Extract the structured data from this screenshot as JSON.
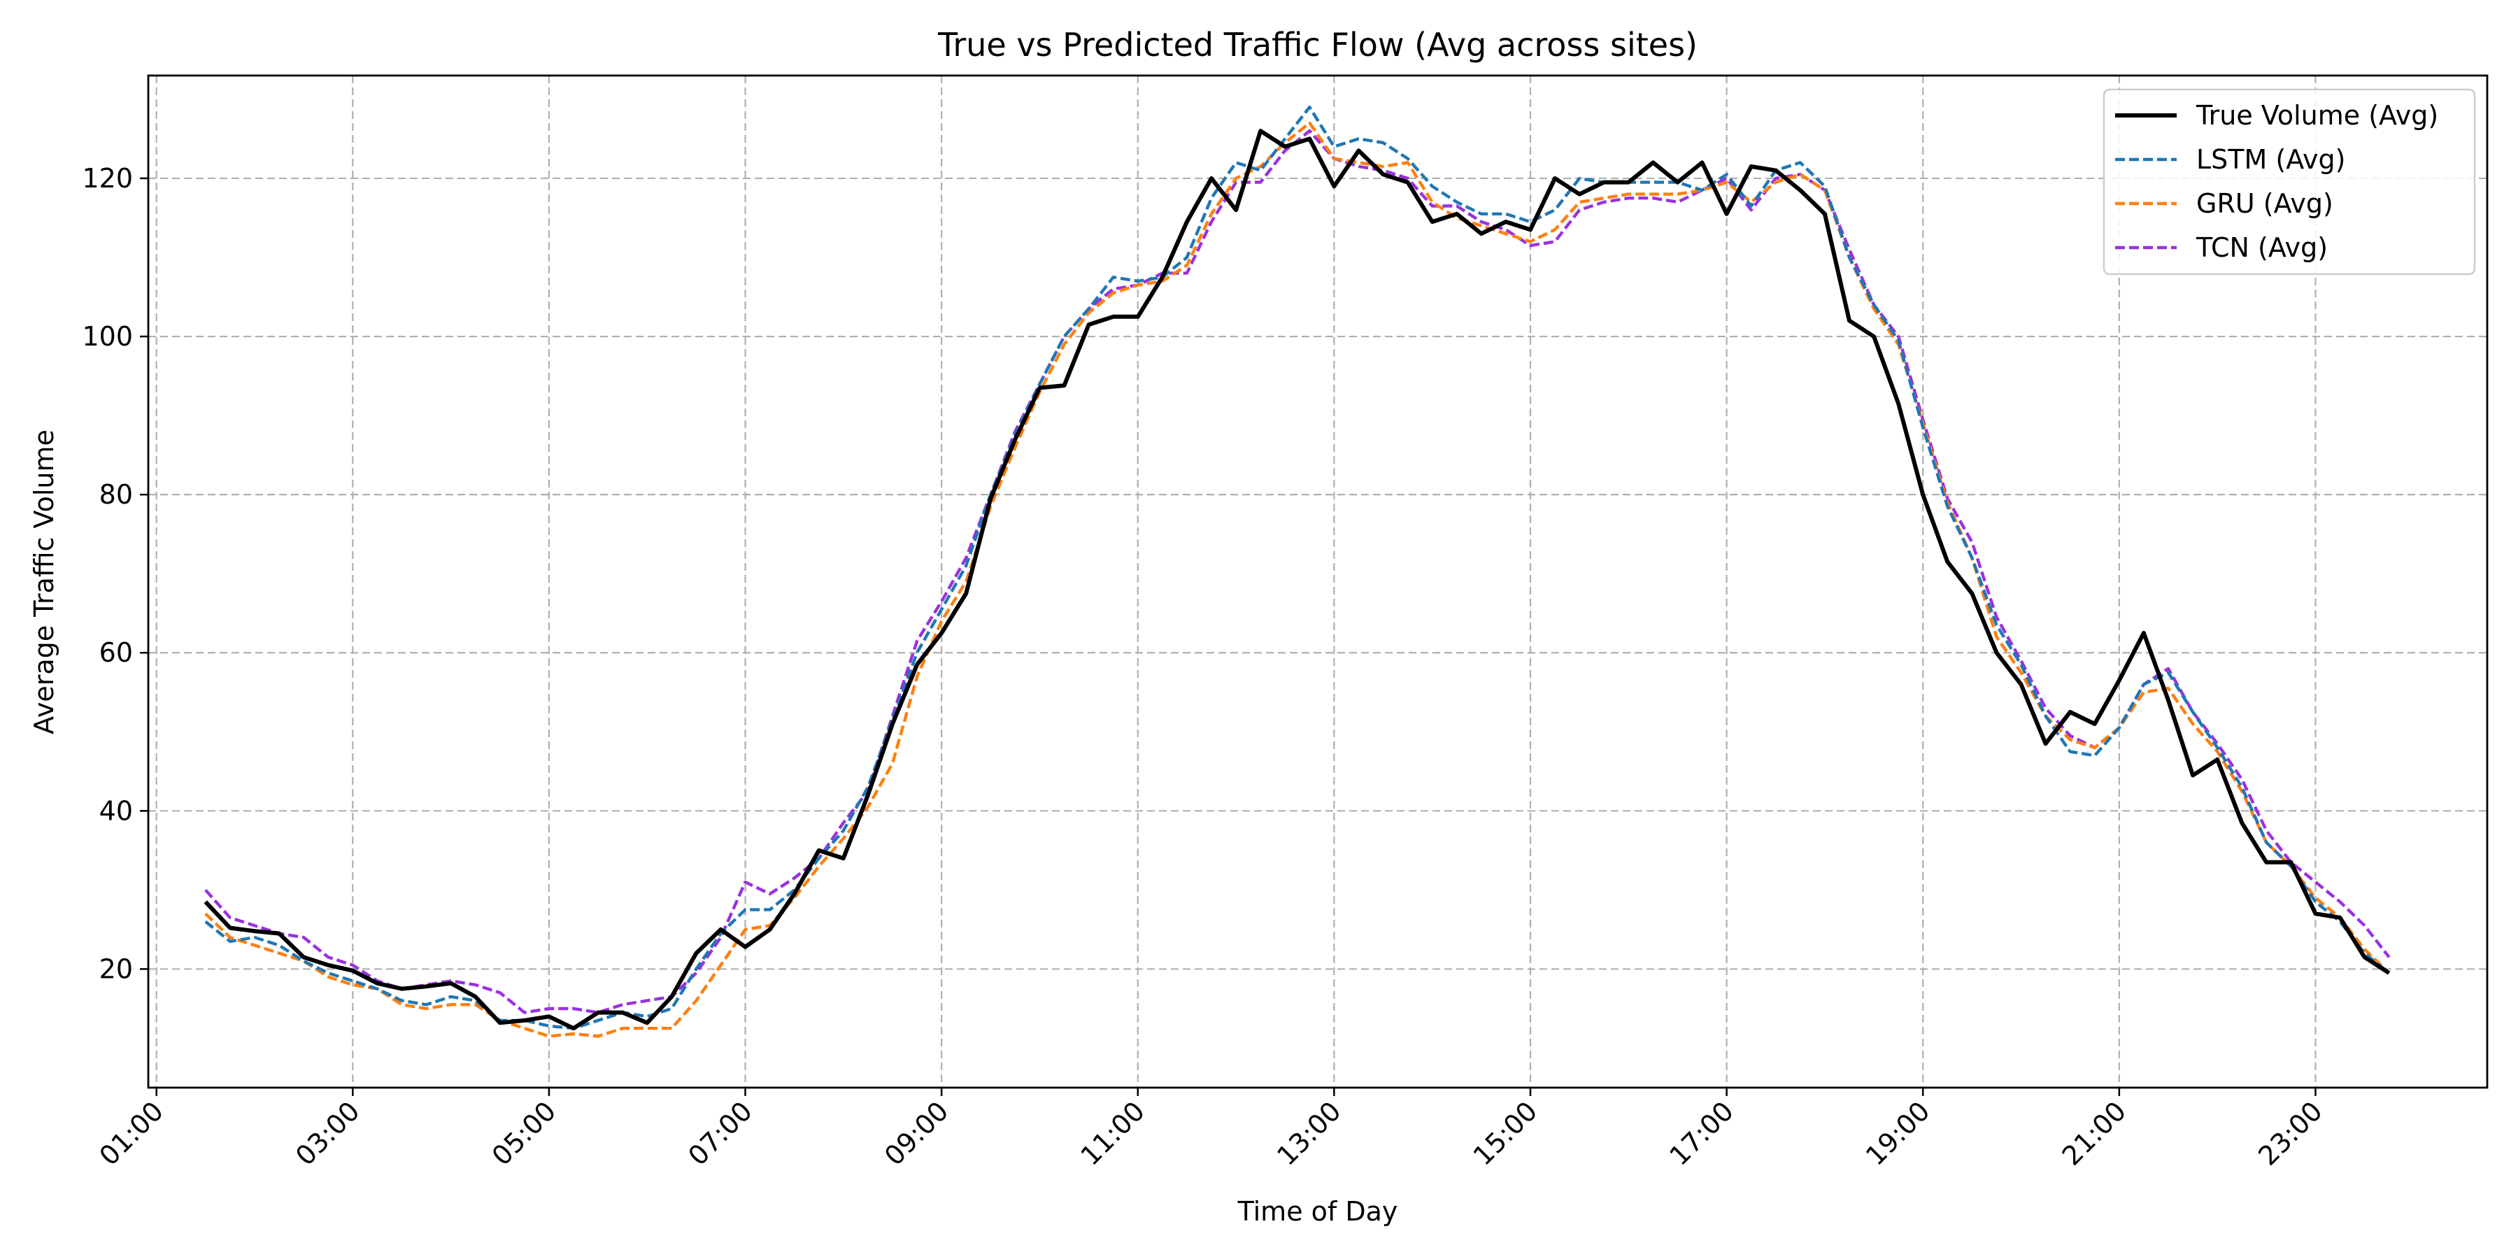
{
  "chart_data": {
    "type": "line",
    "title": "True vs Predicted Traffic Flow (Avg across sites)",
    "xlabel": "Time of Day",
    "ylabel": "Average Traffic Volume",
    "xlim": [
      "00:55",
      "24:45"
    ],
    "ylim": [
      5,
      133
    ],
    "x_ticks": [
      "01:00",
      "03:00",
      "05:00",
      "07:00",
      "09:00",
      "11:00",
      "13:00",
      "15:00",
      "17:00",
      "19:00",
      "21:00",
      "23:00"
    ],
    "y_ticks": [
      20,
      40,
      60,
      80,
      100,
      120
    ],
    "grid": true,
    "legend_position": "top-right",
    "x": [
      "01:30",
      "01:45",
      "02:00",
      "02:15",
      "02:30",
      "02:45",
      "03:00",
      "03:15",
      "03:30",
      "03:45",
      "04:00",
      "04:15",
      "04:30",
      "04:45",
      "05:00",
      "05:15",
      "05:30",
      "05:45",
      "06:00",
      "06:15",
      "06:30",
      "06:45",
      "07:00",
      "07:15",
      "07:30",
      "07:45",
      "08:00",
      "08:15",
      "08:30",
      "08:45",
      "09:00",
      "09:15",
      "09:30",
      "09:45",
      "10:00",
      "10:15",
      "10:30",
      "10:45",
      "11:00",
      "11:15",
      "11:30",
      "11:45",
      "12:00",
      "12:15",
      "12:30",
      "12:45",
      "13:00",
      "13:15",
      "13:30",
      "13:45",
      "14:00",
      "14:15",
      "14:30",
      "14:45",
      "15:00",
      "15:15",
      "15:30",
      "15:45",
      "16:00",
      "16:15",
      "16:30",
      "16:45",
      "17:00",
      "17:15",
      "17:30",
      "17:45",
      "18:00",
      "18:15",
      "18:30",
      "18:45",
      "19:00",
      "19:15",
      "19:30",
      "19:45",
      "20:00",
      "20:15",
      "20:30",
      "20:45",
      "21:00",
      "21:15",
      "21:30",
      "21:45",
      "22:00",
      "22:15",
      "22:30",
      "22:45",
      "23:00",
      "23:15",
      "23:30",
      "23:45"
    ],
    "series": [
      {
        "name": "True Volume (Avg)",
        "color": "#000000",
        "dashed": false,
        "values": [
          28.5,
          25.2,
          24.8,
          24.5,
          21.5,
          20.5,
          19.8,
          18.2,
          17.5,
          17.8,
          18.2,
          16.5,
          13.2,
          13.5,
          14.0,
          12.5,
          14.5,
          14.5,
          13.2,
          16.5,
          22.0,
          25.0,
          22.8,
          25.0,
          29.5,
          35.0,
          34.0,
          42.0,
          51.0,
          58.5,
          62.5,
          67.5,
          79.5,
          87.0,
          93.5,
          93.8,
          101.5,
          102.5,
          102.5,
          107.5,
          114.5,
          120.0,
          116.0,
          126.0,
          124.0,
          125.0,
          119.0,
          123.5,
          120.5,
          119.5,
          114.5,
          115.5,
          113.0,
          114.5,
          113.5,
          120.0,
          118.0,
          119.5,
          119.5,
          122.0,
          119.5,
          122.0,
          115.5,
          121.5,
          121.0,
          118.5,
          115.5,
          102.0,
          100.0,
          91.5,
          80.0,
          71.5,
          67.5,
          60.0,
          56.0,
          48.5,
          52.5,
          51.0,
          56.5,
          62.5,
          54.0,
          44.5,
          46.5,
          38.5,
          33.5,
          33.5,
          27.0,
          26.5,
          21.5,
          19.5
        ]
      },
      {
        "name": "LSTM (Avg)",
        "color": "#1f77b4",
        "dashed": true,
        "values": [
          26.0,
          23.5,
          24.0,
          23.0,
          21.0,
          19.5,
          18.5,
          17.5,
          16.0,
          15.5,
          16.5,
          16.0,
          13.5,
          13.5,
          12.8,
          12.5,
          13.5,
          14.5,
          14.0,
          15.0,
          20.0,
          24.5,
          27.5,
          27.5,
          30.0,
          34.0,
          37.5,
          43.0,
          51.5,
          60.0,
          65.5,
          71.0,
          80.0,
          87.5,
          94.0,
          100.0,
          103.5,
          107.5,
          107.0,
          107.5,
          110.0,
          117.5,
          122.0,
          121.0,
          125.0,
          129.0,
          124.0,
          125.0,
          124.5,
          122.5,
          119.0,
          117.0,
          115.5,
          115.5,
          114.5,
          116.0,
          120.0,
          119.5,
          119.5,
          119.5,
          119.5,
          118.5,
          120.5,
          116.5,
          121.0,
          122.0,
          119.0,
          110.0,
          104.0,
          99.5,
          88.5,
          78.5,
          72.0,
          63.5,
          58.5,
          52.0,
          47.5,
          47.0,
          50.5,
          56.0,
          57.5,
          52.5,
          48.0,
          43.0,
          36.0,
          33.0,
          28.5,
          26.0,
          22.0,
          19.5
        ]
      },
      {
        "name": "GRU (Avg)",
        "color": "#ff7f0e",
        "dashed": true,
        "values": [
          27.0,
          24.0,
          23.0,
          22.0,
          21.0,
          19.0,
          18.0,
          17.5,
          15.5,
          15.0,
          15.5,
          15.5,
          13.5,
          12.5,
          11.5,
          11.8,
          11.5,
          12.5,
          12.5,
          12.5,
          16.0,
          20.5,
          25.0,
          25.5,
          29.0,
          33.0,
          36.5,
          40.5,
          46.0,
          57.0,
          64.0,
          69.0,
          78.5,
          86.0,
          93.0,
          99.0,
          103.0,
          105.5,
          106.5,
          107.0,
          109.0,
          115.5,
          120.0,
          121.5,
          124.5,
          127.0,
          122.5,
          122.0,
          121.5,
          122.0,
          117.0,
          115.0,
          114.0,
          113.0,
          112.0,
          113.5,
          117.0,
          117.5,
          118.0,
          118.0,
          118.0,
          118.5,
          119.5,
          117.0,
          119.5,
          120.5,
          118.5,
          110.0,
          103.5,
          99.0,
          89.0,
          79.0,
          72.0,
          62.0,
          57.5,
          52.0,
          49.0,
          48.0,
          50.5,
          55.0,
          55.5,
          51.0,
          47.5,
          42.5,
          36.0,
          33.0,
          29.0,
          26.5,
          22.5,
          19.5
        ]
      },
      {
        "name": "TCN (Avg)",
        "color": "#9b30e0",
        "dashed": true,
        "values": [
          30.0,
          26.5,
          25.5,
          24.5,
          24.0,
          21.5,
          20.5,
          18.5,
          17.5,
          18.0,
          18.5,
          18.0,
          17.0,
          14.5,
          15.0,
          15.0,
          14.5,
          15.5,
          16.0,
          16.5,
          19.5,
          24.0,
          31.0,
          29.5,
          31.5,
          34.0,
          38.5,
          42.5,
          52.0,
          61.5,
          66.5,
          72.0,
          80.0,
          88.0,
          94.0,
          100.0,
          103.5,
          106.0,
          106.5,
          108.0,
          108.0,
          114.5,
          119.5,
          119.5,
          123.5,
          126.0,
          122.5,
          121.5,
          121.0,
          120.0,
          116.5,
          116.5,
          114.5,
          113.5,
          111.5,
          112.0,
          116.0,
          117.0,
          117.5,
          117.5,
          117.0,
          118.5,
          120.0,
          116.0,
          120.0,
          120.5,
          118.5,
          111.0,
          104.0,
          100.0,
          89.5,
          79.5,
          74.0,
          64.5,
          59.0,
          53.0,
          49.5,
          48.0,
          50.5,
          56.0,
          58.0,
          52.5,
          48.5,
          44.0,
          37.5,
          33.5,
          31.0,
          28.5,
          25.5,
          21.5
        ]
      }
    ]
  }
}
